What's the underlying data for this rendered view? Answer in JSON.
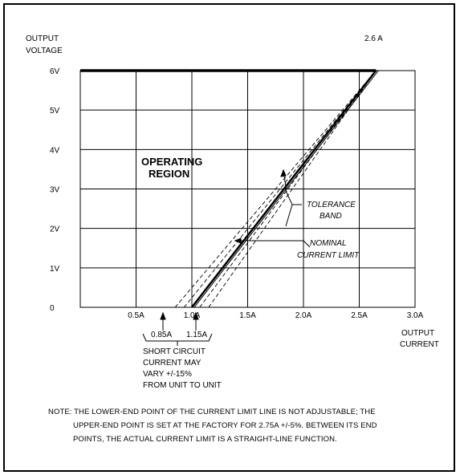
{
  "chart_data": {
    "type": "line",
    "title": "",
    "y_axis_title": [
      "OUTPUT",
      "VOLTAGE"
    ],
    "x_axis_title": [
      "OUTPUT",
      "CURRENT"
    ],
    "xlim": [
      0.0,
      3.0
    ],
    "ylim": [
      0,
      6
    ],
    "x_tick_labels": [
      "0.5A",
      "1.0A",
      "1.5A",
      "2.0A",
      "2.5A",
      "3.0A"
    ],
    "x_tick_values": [
      0.5,
      1.0,
      1.5,
      2.0,
      2.5,
      3.0
    ],
    "y_tick_labels": [
      "0",
      "1V",
      "2V",
      "3V",
      "4V",
      "5V",
      "6V"
    ],
    "y_tick_values": [
      0,
      1,
      2,
      3,
      4,
      5,
      6
    ],
    "grid": true,
    "series": [
      {
        "name": "",
        "style": "bold",
        "x": [
          0.0,
          2.65
        ],
        "y": [
          6,
          6
        ]
      },
      {
        "name": "",
        "style": "solid",
        "x": [
          1.0,
          2.65
        ],
        "y": [
          0,
          6
        ]
      },
      {
        "name": "",
        "style": "dashed",
        "x": [
          0.85,
          2.65
        ],
        "y": [
          0,
          6
        ]
      },
      {
        "name": "",
        "style": "dashed",
        "x": [
          1.15,
          2.65
        ],
        "y": [
          0,
          6
        ]
      },
      {
        "name": "",
        "style": "dashed",
        "x": [
          0.93,
          2.65
        ],
        "y": [
          0,
          6
        ]
      },
      {
        "name": "",
        "style": "dashed",
        "x": [
          1.07,
          2.65
        ],
        "y": [
          0,
          6
        ]
      }
    ],
    "annotations": {
      "peak_current": "2.6 A",
      "region_label": [
        "OPERATING",
        "REGION"
      ],
      "tolerance_label": [
        "TOLERANCE",
        "BAND"
      ],
      "nominal_label": [
        "NOMINAL",
        "CURRENT LIMIT"
      ],
      "short_circuit_low": "0.85A",
      "short_circuit_high": "1.15A",
      "short_circuit_text": [
        "SHORT CIRCUIT",
        "CURRENT MAY",
        "VARY +/-15%",
        "FROM UNIT TO UNIT"
      ]
    }
  },
  "note": {
    "line1": "NOTE: THE LOWER-END POINT OF THE CURRENT LIMIT LINE IS NOT ADJUSTABLE; THE",
    "line2": "UPPER-END POINT IS SET AT THE FACTORY FOR 2.75A +/-5%. BETWEEN ITS END",
    "line3": "POINTS, THE ACTUAL CURRENT LIMIT IS A STRAIGHT-LINE FUNCTION."
  }
}
